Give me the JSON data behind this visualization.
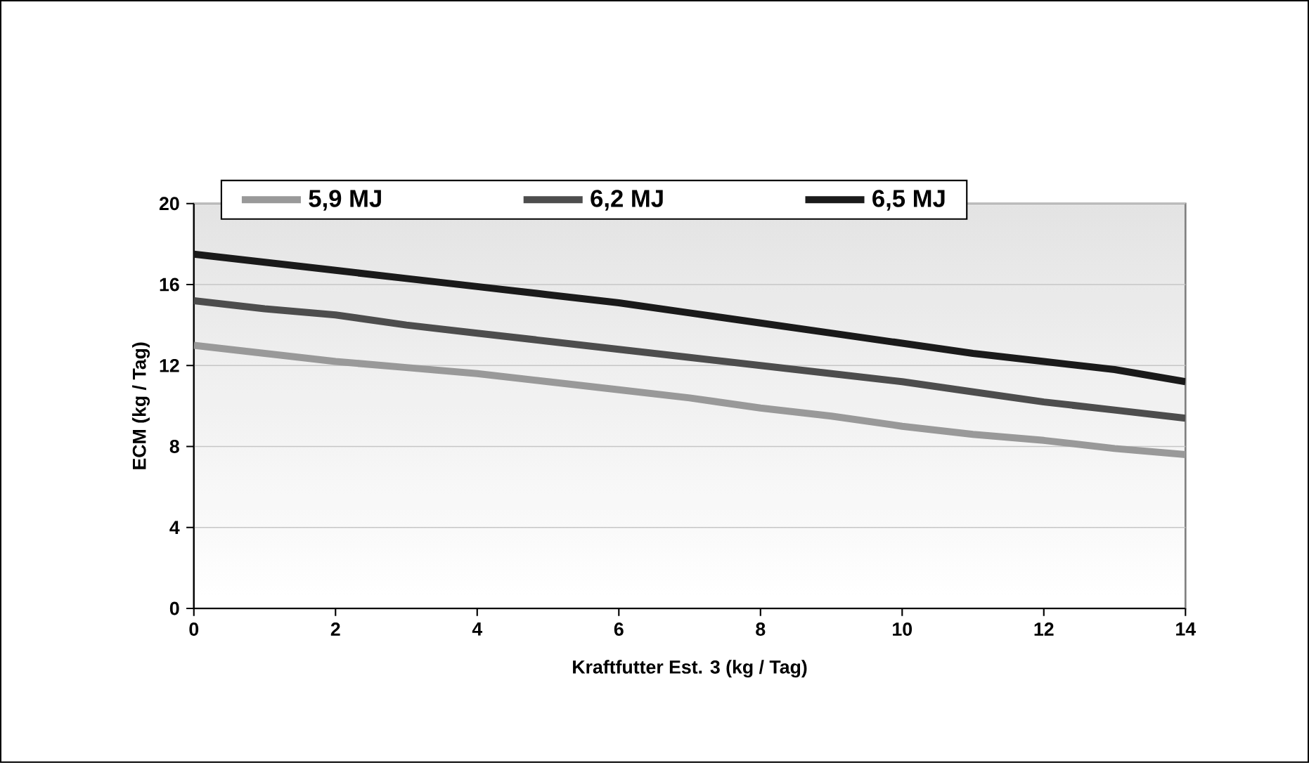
{
  "chart_data": {
    "type": "line",
    "xlabel": "Kraftfutter Est. 3 (kg / Tag)",
    "ylabel": "ECM (kg / Tag)",
    "x": [
      0,
      1,
      2,
      3,
      4,
      5,
      6,
      7,
      8,
      9,
      10,
      11,
      12,
      13,
      14
    ],
    "series": [
      {
        "name": "5,9 MJ",
        "color": "#999999",
        "values": [
          13.0,
          12.6,
          12.2,
          11.9,
          11.6,
          11.2,
          10.8,
          10.4,
          9.9,
          9.5,
          9.0,
          8.6,
          8.3,
          7.9,
          7.6
        ]
      },
      {
        "name": "6,2 MJ",
        "color": "#4d4d4d",
        "values": [
          15.2,
          14.8,
          14.5,
          14.0,
          13.6,
          13.2,
          12.8,
          12.4,
          12.0,
          11.6,
          11.2,
          10.7,
          10.2,
          9.8,
          9.4
        ]
      },
      {
        "name": "6,5 MJ",
        "color": "#1a1a1a",
        "values": [
          17.5,
          17.1,
          16.7,
          16.3,
          15.9,
          15.5,
          15.1,
          14.6,
          14.1,
          13.6,
          13.1,
          12.6,
          12.2,
          11.8,
          11.2
        ]
      }
    ],
    "xlim": [
      0,
      14
    ],
    "xticks": [
      0,
      2,
      4,
      6,
      8,
      10,
      12,
      14
    ],
    "ylim": [
      0,
      20
    ],
    "yticks": [
      0,
      4,
      8,
      12,
      16,
      20
    ],
    "grid": "y",
    "legend": "top",
    "marker": "none",
    "line_style": "solid"
  }
}
